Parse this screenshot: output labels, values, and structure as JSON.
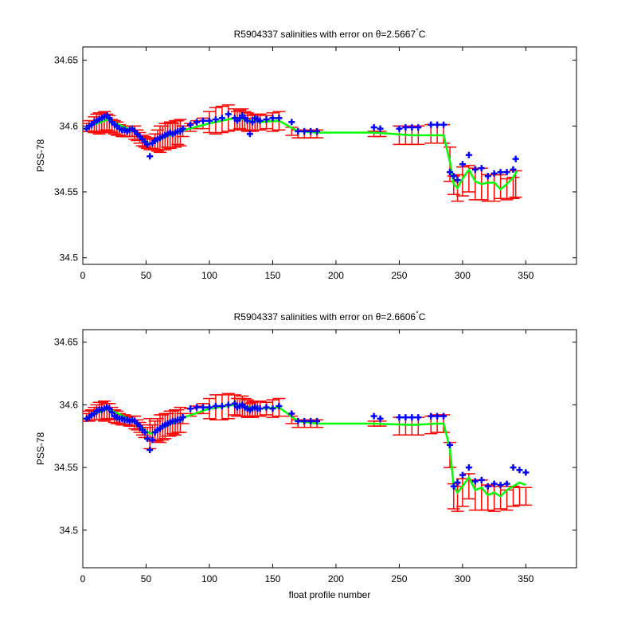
{
  "chart_data": [
    {
      "type": "scatter",
      "title_prefix": "R5904337 salinities with error on θ=2.5667",
      "title_deg": "°",
      "title_suffix": "C",
      "ylabel": "PSS-78",
      "xlabel": "",
      "xlim": [
        0,
        390
      ],
      "ylim": [
        34.495,
        34.66
      ],
      "xticks": [
        0,
        50,
        100,
        150,
        200,
        250,
        300,
        350
      ],
      "yticks": [
        34.5,
        34.55,
        34.6,
        34.65
      ],
      "ytick_labels": [
        "34.5",
        "34.55",
        "34.6",
        "34.65"
      ],
      "grid": false,
      "colors": {
        "points": "#0000ff",
        "errorbars": "#ff0000",
        "fit": "#00ff00"
      },
      "series": [
        {
          "x": [
            3,
            5,
            7,
            9,
            11,
            13,
            15,
            17,
            19,
            21,
            23,
            25,
            27,
            29,
            31,
            33,
            35,
            37,
            39,
            41,
            43,
            45,
            47,
            49,
            51,
            53,
            55,
            57,
            59,
            61,
            63,
            65,
            67,
            69,
            71,
            73,
            75,
            77,
            79,
            85,
            90,
            95,
            100,
            105,
            110,
            115,
            120,
            122,
            124,
            126,
            128,
            130,
            132,
            134,
            136,
            138,
            140,
            145,
            150,
            155,
            165,
            170,
            175,
            180,
            185,
            230,
            235,
            250,
            255,
            260,
            265,
            275,
            280,
            285,
            290,
            293,
            296,
            300,
            305,
            310,
            315,
            320,
            325,
            330,
            335,
            340,
            342
          ],
          "y": [
            34.598,
            34.6,
            34.601,
            34.603,
            34.604,
            34.605,
            34.606,
            34.607,
            34.608,
            34.606,
            34.603,
            34.601,
            34.6,
            34.598,
            34.597,
            34.597,
            34.596,
            34.597,
            34.598,
            34.596,
            34.594,
            34.592,
            34.59,
            34.588,
            34.586,
            34.577,
            34.587,
            34.589,
            34.59,
            34.591,
            34.592,
            34.593,
            34.594,
            34.595,
            34.594,
            34.595,
            34.596,
            34.596,
            34.598,
            34.601,
            34.603,
            34.604,
            34.604,
            34.605,
            34.606,
            34.609,
            34.606,
            34.604,
            34.606,
            34.608,
            34.606,
            34.604,
            34.594,
            34.603,
            34.606,
            34.605,
            34.604,
            34.605,
            34.606,
            34.606,
            34.603,
            34.596,
            34.596,
            34.596,
            34.596,
            34.599,
            34.598,
            34.598,
            34.599,
            34.599,
            34.599,
            34.601,
            34.601,
            34.601,
            34.565,
            34.562,
            34.559,
            34.571,
            34.578,
            34.567,
            34.568,
            34.562,
            34.564,
            34.565,
            34.565,
            34.567,
            34.575
          ],
          "err_center": [
            34.599,
            34.6,
            34.6,
            34.601,
            34.602,
            34.602,
            34.603,
            34.603,
            34.603,
            34.602,
            34.6,
            34.599,
            34.598,
            34.597,
            34.596,
            34.596,
            34.595,
            34.596,
            34.596,
            34.595,
            34.593,
            34.591,
            34.589,
            34.588,
            34.587,
            34.586,
            34.587,
            34.588,
            34.589,
            34.59,
            34.591,
            34.592,
            34.593,
            34.593,
            34.593,
            34.594,
            34.595,
            34.595,
            34.596,
            34.599,
            34.601,
            34.602,
            34.603,
            34.604,
            34.605,
            34.606,
            34.605,
            34.604,
            34.605,
            34.605,
            34.604,
            34.603,
            34.601,
            34.602,
            34.603,
            34.603,
            34.603,
            34.603,
            34.603,
            34.604,
            34.596,
            34.594,
            34.594,
            34.594,
            34.594,
            34.594,
            34.594,
            34.593,
            34.593,
            34.593,
            34.593,
            34.594,
            34.594,
            34.594,
            34.571,
            34.555,
            34.553,
            34.558,
            34.56,
            34.556,
            34.556,
            34.553,
            34.553,
            34.554,
            34.552,
            34.553,
            34.556
          ],
          "err": [
            0.003,
            0.004,
            0.004,
            0.006,
            0.007,
            0.008,
            0.007,
            0.008,
            0.006,
            0.006,
            0.005,
            0.005,
            0.005,
            0.004,
            0.004,
            0.004,
            0.003,
            0.004,
            0.004,
            0.005,
            0.004,
            0.004,
            0.004,
            0.004,
            0.004,
            0.004,
            0.004,
            0.006,
            0.008,
            0.01,
            0.009,
            0.01,
            0.009,
            0.01,
            0.009,
            0.01,
            0.009,
            0.01,
            0.004,
            0.003,
            0.003,
            0.004,
            0.008,
            0.01,
            0.01,
            0.01,
            0.008,
            0.007,
            0.007,
            0.008,
            0.007,
            0.007,
            0.005,
            0.006,
            0.006,
            0.006,
            0.006,
            0.005,
            0.007,
            0.007,
            0.003,
            0.003,
            0.003,
            0.003,
            0.003,
            0.002,
            0.002,
            0.007,
            0.007,
            0.007,
            0.007,
            0.007,
            0.007,
            0.007,
            0.013,
            0.007,
            0.01,
            0.011,
            0.01,
            0.012,
            0.012,
            0.01,
            0.01,
            0.009,
            0.008,
            0.008,
            0.01
          ],
          "fit_x": [
            3,
            20,
            40,
            53,
            60,
            80,
            100,
            120,
            140,
            155,
            170,
            185,
            230,
            260,
            280,
            285,
            290,
            293,
            296,
            300,
            305,
            310,
            315,
            320,
            325,
            330,
            335,
            340,
            343
          ],
          "fit_y": [
            34.599,
            34.605,
            34.596,
            34.586,
            34.59,
            34.597,
            34.602,
            34.606,
            34.603,
            34.604,
            34.596,
            34.595,
            34.595,
            34.593,
            34.593,
            34.593,
            34.573,
            34.556,
            34.553,
            34.56,
            34.567,
            34.558,
            34.556,
            34.557,
            34.557,
            34.552,
            34.556,
            34.561,
            34.566
          ]
        }
      ]
    },
    {
      "type": "scatter",
      "title_prefix": "R5904337 salinities with error on θ=2.6606",
      "title_deg": "°",
      "title_suffix": "C",
      "ylabel": "PSS-78",
      "xlabel": "float profile number",
      "xlim": [
        0,
        390
      ],
      "ylim": [
        34.47,
        34.66
      ],
      "xticks": [
        0,
        50,
        100,
        150,
        200,
        250,
        300,
        350
      ],
      "yticks": [
        34.5,
        34.55,
        34.6,
        34.65
      ],
      "ytick_labels": [
        "34.5",
        "34.55",
        "34.6",
        "34.65"
      ],
      "grid": false,
      "colors": {
        "points": "#0000ff",
        "errorbars": "#ff0000",
        "fit": "#00ff00"
      },
      "series": [
        {
          "x": [
            3,
            5,
            7,
            9,
            11,
            13,
            15,
            17,
            19,
            21,
            23,
            25,
            27,
            29,
            31,
            33,
            35,
            37,
            39,
            41,
            43,
            45,
            47,
            49,
            51,
            53,
            55,
            57,
            59,
            61,
            63,
            65,
            67,
            69,
            71,
            73,
            75,
            77,
            79,
            85,
            90,
            95,
            100,
            105,
            110,
            115,
            120,
            122,
            124,
            126,
            128,
            130,
            132,
            134,
            136,
            138,
            140,
            145,
            150,
            155,
            165,
            170,
            175,
            180,
            185,
            230,
            235,
            250,
            255,
            260,
            265,
            275,
            280,
            285,
            290,
            293,
            296,
            300,
            305,
            310,
            315,
            320,
            325,
            330,
            335,
            340,
            345,
            350
          ],
          "y": [
            34.589,
            34.59,
            34.592,
            34.593,
            34.595,
            34.596,
            34.596,
            34.597,
            34.598,
            34.597,
            34.594,
            34.591,
            34.59,
            34.589,
            34.589,
            34.588,
            34.588,
            34.587,
            34.588,
            34.587,
            34.585,
            34.583,
            34.58,
            34.578,
            34.573,
            34.564,
            34.572,
            34.578,
            34.58,
            34.581,
            34.583,
            34.584,
            34.585,
            34.586,
            34.587,
            34.587,
            34.588,
            34.588,
            34.59,
            34.597,
            34.598,
            34.598,
            34.598,
            34.599,
            34.599,
            34.6,
            34.601,
            34.598,
            34.599,
            34.6,
            34.598,
            34.597,
            34.596,
            34.597,
            34.598,
            34.597,
            34.597,
            34.598,
            34.597,
            34.599,
            34.593,
            34.587,
            34.587,
            34.587,
            34.587,
            34.591,
            34.589,
            34.59,
            34.59,
            34.59,
            34.59,
            34.591,
            34.591,
            34.591,
            34.568,
            34.535,
            34.538,
            34.544,
            34.55,
            34.539,
            34.54,
            34.535,
            34.537,
            34.536,
            34.537,
            34.55,
            34.548,
            34.546
          ],
          "err_center": [
            34.59,
            34.591,
            34.592,
            34.593,
            34.594,
            34.595,
            34.595,
            34.595,
            34.595,
            34.595,
            34.593,
            34.591,
            34.59,
            34.589,
            34.588,
            34.588,
            34.587,
            34.587,
            34.587,
            34.586,
            34.584,
            34.582,
            34.58,
            34.578,
            34.578,
            34.577,
            34.578,
            34.579,
            34.58,
            34.581,
            34.582,
            34.583,
            34.584,
            34.585,
            34.586,
            34.586,
            34.587,
            34.588,
            34.589,
            34.594,
            34.596,
            34.597,
            34.597,
            34.598,
            34.598,
            34.599,
            34.6,
            34.598,
            34.598,
            34.599,
            34.598,
            34.597,
            34.596,
            34.596,
            34.597,
            34.597,
            34.597,
            34.597,
            34.597,
            34.598,
            34.588,
            34.585,
            34.585,
            34.585,
            34.585,
            34.585,
            34.585,
            34.583,
            34.583,
            34.583,
            34.583,
            34.584,
            34.585,
            34.585,
            34.56,
            34.527,
            34.525,
            34.53,
            34.535,
            34.528,
            34.528,
            34.526,
            34.525,
            34.526,
            34.524,
            34.527,
            34.527,
            34.527
          ],
          "err": [
            0.003,
            0.004,
            0.004,
            0.005,
            0.006,
            0.007,
            0.007,
            0.008,
            0.006,
            0.006,
            0.005,
            0.005,
            0.005,
            0.004,
            0.004,
            0.004,
            0.003,
            0.004,
            0.004,
            0.005,
            0.004,
            0.004,
            0.004,
            0.004,
            0.004,
            0.012,
            0.006,
            0.008,
            0.009,
            0.011,
            0.01,
            0.01,
            0.009,
            0.01,
            0.009,
            0.01,
            0.009,
            0.01,
            0.004,
            0.003,
            0.003,
            0.004,
            0.008,
            0.01,
            0.01,
            0.01,
            0.008,
            0.007,
            0.007,
            0.008,
            0.007,
            0.007,
            0.005,
            0.006,
            0.006,
            0.006,
            0.006,
            0.005,
            0.007,
            0.007,
            0.003,
            0.003,
            0.003,
            0.003,
            0.003,
            0.002,
            0.002,
            0.007,
            0.007,
            0.007,
            0.007,
            0.007,
            0.007,
            0.007,
            0.01,
            0.01,
            0.01,
            0.011,
            0.01,
            0.012,
            0.012,
            0.01,
            0.01,
            0.009,
            0.008,
            0.008,
            0.007,
            0.007
          ],
          "fit_x": [
            3,
            20,
            40,
            53,
            60,
            80,
            100,
            120,
            140,
            155,
            170,
            185,
            230,
            260,
            280,
            285,
            290,
            293,
            296,
            300,
            305,
            310,
            315,
            320,
            325,
            330,
            335,
            340,
            345,
            350
          ],
          "fit_y": [
            34.59,
            34.597,
            34.587,
            34.577,
            34.58,
            34.59,
            34.597,
            34.6,
            34.597,
            34.598,
            34.587,
            34.585,
            34.585,
            34.584,
            34.585,
            34.585,
            34.565,
            34.535,
            34.53,
            34.535,
            34.542,
            34.532,
            34.534,
            34.528,
            34.53,
            34.527,
            34.532,
            34.535,
            34.538,
            34.536
          ]
        }
      ]
    }
  ]
}
